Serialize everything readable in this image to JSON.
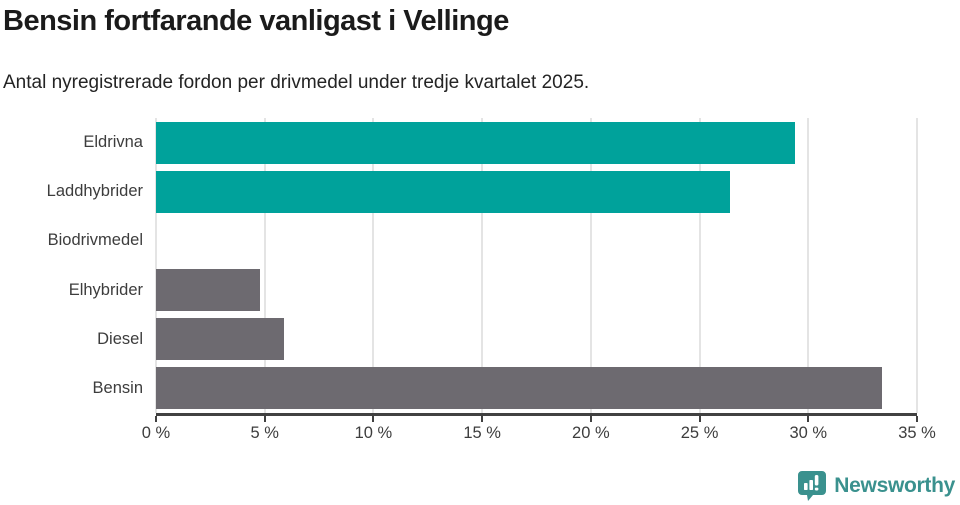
{
  "header": {
    "title": "Bensin fortfarande vanligast i Vellinge",
    "subtitle": "Antal nyregistrerade fordon per drivmedel under tredje kvartalet 2025."
  },
  "chart_data": {
    "type": "bar",
    "orientation": "horizontal",
    "title": "Bensin fortfarande vanligast i Vellinge",
    "categories": [
      "Eldrivna",
      "Laddhybrider",
      "Biodrivmedel",
      "Elhybrider",
      "Diesel",
      "Bensin"
    ],
    "values": [
      29.4,
      26.4,
      0,
      4.8,
      5.9,
      33.4
    ],
    "unit": "%",
    "xlabel": "",
    "ylabel": "",
    "xlim": [
      0,
      35
    ],
    "x_ticks": [
      0,
      5,
      10,
      15,
      20,
      25,
      30,
      35
    ],
    "x_tick_labels": [
      "0 %",
      "5 %",
      "10 %",
      "15 %",
      "20 %",
      "25 %",
      "30 %",
      "35 %"
    ],
    "bar_colors": [
      "#00a29b",
      "#00a29b",
      "#6d6a70",
      "#6d6a70",
      "#6d6a70",
      "#6d6a70"
    ],
    "grid": "vertical",
    "legend": "none"
  },
  "colors": {
    "teal": "#00a29b",
    "gray": "#6d6a70",
    "brand": "#3a918e",
    "gridline": "#e4e4e4",
    "axis": "#414141"
  },
  "footer": {
    "brand_name": "Newsworthy",
    "logo_icon": "bar-chart-speech-bubble-icon"
  }
}
